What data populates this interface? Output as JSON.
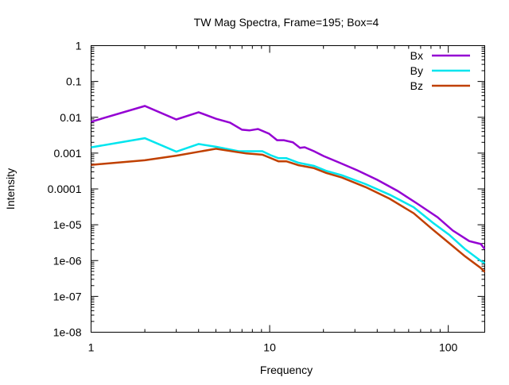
{
  "chart_data": {
    "type": "line",
    "title": "TW Mag Spectra, Frame=195; Box=4",
    "xlabel": "Frequency",
    "ylabel": "Intensity",
    "xscale": "log",
    "yscale": "log",
    "xlim": [
      1,
      160
    ],
    "ylim": [
      1e-08,
      1
    ],
    "xticks": [
      {
        "v": 1,
        "label": "1"
      },
      {
        "v": 10,
        "label": "10"
      },
      {
        "v": 100,
        "label": "100"
      }
    ],
    "yticks": [
      {
        "v": 1,
        "label": "1"
      },
      {
        "v": 0.1,
        "label": "0.1"
      },
      {
        "v": 0.01,
        "label": "0.01"
      },
      {
        "v": 0.001,
        "label": "0.001"
      },
      {
        "v": 0.0001,
        "label": "0.0001"
      },
      {
        "v": 1e-05,
        "label": "1e-05"
      },
      {
        "v": 1e-06,
        "label": "1e-06"
      },
      {
        "v": 1e-07,
        "label": "1e-07"
      },
      {
        "v": 1e-08,
        "label": "1e-08"
      }
    ],
    "grid": false,
    "legend_position": "top-right",
    "series": [
      {
        "name": "Bx",
        "color": "#9400d3",
        "x": [
          1,
          2,
          3,
          4,
          5,
          6,
          7,
          7.7,
          8.6,
          9.9,
          11,
          12,
          13.5,
          14.8,
          15.7,
          17.7,
          20,
          24.4,
          31,
          40,
          52,
          67,
          87,
          106,
          131,
          152,
          160
        ],
        "y": [
          0.0075,
          0.0207,
          0.0087,
          0.0138,
          0.0091,
          0.0071,
          0.0045,
          0.0043,
          0.0047,
          0.0035,
          0.0023,
          0.0023,
          0.002,
          0.0014,
          0.00146,
          0.00113,
          0.00083,
          0.00055,
          0.00033,
          0.00018,
          8.8e-05,
          3.9e-05,
          1.63e-05,
          6.9e-06,
          3.5e-06,
          2.9e-06,
          2.1e-06
        ]
      },
      {
        "name": "By",
        "color": "#00e5ee",
        "x": [
          1,
          2,
          3,
          4,
          5,
          6.7,
          9.1,
          10.1,
          11.2,
          12.4,
          14.5,
          17.7,
          20.7,
          25.4,
          34.5,
          47,
          64,
          82,
          101,
          124,
          152,
          160
        ],
        "y": [
          0.00145,
          0.0026,
          0.0011,
          0.0018,
          0.0015,
          0.00113,
          0.00113,
          0.00088,
          0.00072,
          0.00072,
          0.00054,
          0.00044,
          0.00032,
          0.00024,
          0.000136,
          6.9e-05,
          3.1e-05,
          1.14e-05,
          5.3e-06,
          2.1e-06,
          9.8e-07,
          8.4e-07
        ]
      },
      {
        "name": "Bz",
        "color": "#c04000",
        "x": [
          1,
          2,
          3,
          4,
          5,
          6.4,
          7.4,
          9.1,
          10.1,
          11.2,
          12.4,
          14.5,
          17.7,
          20.7,
          25.4,
          34.5,
          47,
          64,
          82,
          101,
          124,
          152,
          160
        ],
        "y": [
          0.00047,
          0.00063,
          0.00085,
          0.00109,
          0.00132,
          0.00109,
          0.00098,
          0.0009,
          0.00073,
          0.00059,
          0.00059,
          0.00046,
          0.00038,
          0.00028,
          0.000207,
          0.000112,
          5.3e-05,
          2.1e-05,
          7.3e-06,
          3.1e-06,
          1.32e-06,
          6.2e-07,
          4.8e-07
        ]
      }
    ]
  }
}
